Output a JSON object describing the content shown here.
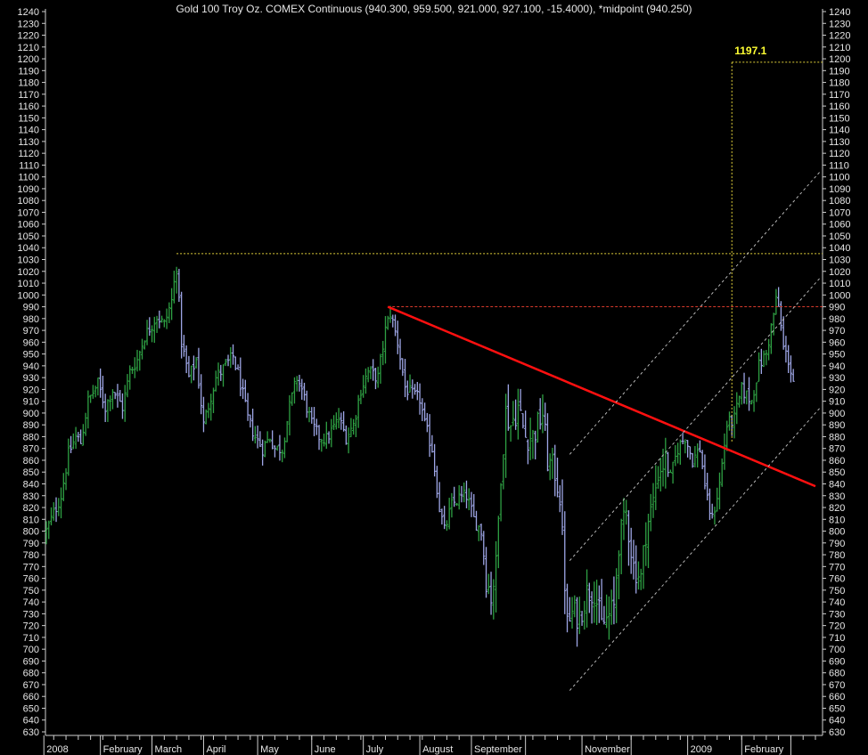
{
  "chart_title": "Gold 100 Troy Oz. COMEX Continuous (940.300, 959.500, 921.000, 927.100, -15.4000), *midpoint (940.250)",
  "colors": {
    "background": "#000000",
    "up_bar": "#2ea043",
    "down_bar": "#9ea6e6",
    "axis_text": "#e6e6e6",
    "trendline": "#ff1010",
    "horizontal_990": "#d83a2c",
    "dotted_yellow": "#e2d23a",
    "channel": "#c8c8c8",
    "target_label": "#ffff33"
  },
  "chart_data": {
    "type": "ohlc",
    "title": "Gold 100 Troy Oz. COMEX Continuous (940.300, 959.500, 921.000, 927.100, -15.4000), *midpoint (940.250)",
    "y_axis": {
      "min": 630,
      "max": 1240,
      "step": 10,
      "ticks_both_sides": true
    },
    "x_labels": [
      "2008",
      "February",
      "March",
      "April",
      "May",
      "June",
      "July",
      "August",
      "September",
      "November",
      "2009",
      "February"
    ],
    "price_anchors": [
      [
        "2008-01-02",
        800
      ],
      [
        "2008-01-07",
        815
      ],
      [
        "2008-01-10",
        830
      ],
      [
        "2008-01-15",
        865
      ],
      [
        "2008-01-18",
        880
      ],
      [
        "2008-01-22",
        875
      ],
      [
        "2008-01-25",
        910
      ],
      [
        "2008-01-31",
        925
      ],
      [
        "2008-02-05",
        905
      ],
      [
        "2008-02-08",
        920
      ],
      [
        "2008-02-14",
        905
      ],
      [
        "2008-02-19",
        935
      ],
      [
        "2008-02-22",
        945
      ],
      [
        "2008-02-27",
        965
      ],
      [
        "2008-02-29",
        972
      ],
      [
        "2008-03-05",
        982
      ],
      [
        "2008-03-10",
        975
      ],
      [
        "2008-03-13",
        995
      ],
      [
        "2008-03-17",
        1025
      ],
      [
        "2008-03-19",
        960
      ],
      [
        "2008-03-24",
        930
      ],
      [
        "2008-03-27",
        945
      ],
      [
        "2008-04-01",
        890
      ],
      [
        "2008-04-04",
        915
      ],
      [
        "2008-04-08",
        930
      ],
      [
        "2008-04-14",
        940
      ],
      [
        "2008-04-17",
        948
      ],
      [
        "2008-04-22",
        925
      ],
      [
        "2008-04-25",
        895
      ],
      [
        "2008-04-30",
        880
      ],
      [
        "2008-05-05",
        870
      ],
      [
        "2008-05-08",
        880
      ],
      [
        "2008-05-12",
        870
      ],
      [
        "2008-05-15",
        870
      ],
      [
        "2008-05-20",
        905
      ],
      [
        "2008-05-23",
        930
      ],
      [
        "2008-05-27",
        920
      ],
      [
        "2008-06-02",
        890
      ],
      [
        "2008-06-05",
        880
      ],
      [
        "2008-06-10",
        878
      ],
      [
        "2008-06-13",
        888
      ],
      [
        "2008-06-17",
        895
      ],
      [
        "2008-06-20",
        880
      ],
      [
        "2008-06-25",
        890
      ],
      [
        "2008-06-30",
        920
      ],
      [
        "2008-07-03",
        935
      ],
      [
        "2008-07-09",
        930
      ],
      [
        "2008-07-14",
        970
      ],
      [
        "2008-07-16",
        985
      ],
      [
        "2008-07-21",
        960
      ],
      [
        "2008-07-24",
        922
      ],
      [
        "2008-07-29",
        915
      ],
      [
        "2008-08-01",
        912
      ],
      [
        "2008-08-05",
        890
      ],
      [
        "2008-08-08",
        870
      ],
      [
        "2008-08-13",
        820
      ],
      [
        "2008-08-15",
        800
      ],
      [
        "2008-08-20",
        822
      ],
      [
        "2008-08-25",
        828
      ],
      [
        "2008-08-28",
        830
      ],
      [
        "2008-09-02",
        810
      ],
      [
        "2008-09-05",
        800
      ],
      [
        "2008-09-09",
        760
      ],
      [
        "2008-09-11",
        745
      ],
      [
        "2008-09-15",
        770
      ],
      [
        "2008-09-17",
        850
      ],
      [
        "2008-09-19",
        900
      ],
      [
        "2008-09-23",
        890
      ],
      [
        "2008-09-26",
        905
      ],
      [
        "2008-10-01",
        880
      ],
      [
        "2008-10-06",
        880
      ],
      [
        "2008-10-10",
        900
      ],
      [
        "2008-10-14",
        860
      ],
      [
        "2008-10-17",
        850
      ],
      [
        "2008-10-21",
        830
      ],
      [
        "2008-10-24",
        720
      ],
      [
        "2008-10-28",
        730
      ],
      [
        "2008-10-31",
        728
      ],
      [
        "2008-11-05",
        748
      ],
      [
        "2008-11-10",
        750
      ],
      [
        "2008-11-13",
        720
      ],
      [
        "2008-11-17",
        725
      ],
      [
        "2008-11-20",
        735
      ],
      [
        "2008-11-24",
        790
      ],
      [
        "2008-11-27",
        815
      ],
      [
        "2008-12-02",
        770
      ],
      [
        "2008-12-05",
        760
      ],
      [
        "2008-12-09",
        800
      ],
      [
        "2008-12-12",
        825
      ],
      [
        "2008-12-16",
        850
      ],
      [
        "2008-12-19",
        860
      ],
      [
        "2008-12-23",
        845
      ],
      [
        "2008-12-26",
        870
      ],
      [
        "2008-12-31",
        880
      ],
      [
        "2009-01-05",
        860
      ],
      [
        "2009-01-08",
        870
      ],
      [
        "2009-01-13",
        825
      ],
      [
        "2009-01-15",
        810
      ],
      [
        "2009-01-20",
        840
      ],
      [
        "2009-01-23",
        890
      ],
      [
        "2009-01-28",
        895
      ],
      [
        "2009-02-02",
        920
      ],
      [
        "2009-02-06",
        910
      ],
      [
        "2009-02-11",
        940
      ],
      [
        "2009-02-16",
        950
      ],
      [
        "2009-02-20",
        995
      ],
      [
        "2009-02-23",
        990
      ],
      [
        "2009-02-25",
        955
      ],
      [
        "2009-02-27",
        945
      ],
      [
        "2009-03-03",
        927
      ]
    ],
    "annotations": {
      "target_label": "1197.1",
      "target_level": 1197.1,
      "resistance_level": 1035,
      "horizontal_990": 990,
      "trendline": {
        "from": [
          "2008-07-15",
          990
        ],
        "to": [
          "2009-03-16",
          838
        ]
      },
      "vertical_dotted_at": "2009-01-27",
      "channel": {
        "lower_start": [
          "2008-10-27",
          665
        ],
        "lower_slope_per_trading_day": 2.35,
        "offsets": [
          0,
          110,
          200
        ]
      }
    }
  }
}
